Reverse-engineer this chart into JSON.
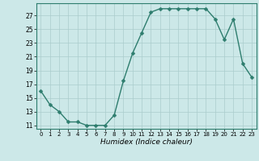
{
  "x": [
    0,
    1,
    2,
    3,
    4,
    5,
    6,
    7,
    8,
    9,
    10,
    11,
    12,
    13,
    14,
    15,
    16,
    17,
    18,
    19,
    20,
    21,
    22,
    23
  ],
  "y": [
    16.0,
    14.0,
    13.0,
    11.5,
    11.5,
    11.0,
    11.0,
    11.0,
    12.5,
    17.5,
    21.5,
    24.5,
    27.5,
    28.0,
    28.0,
    28.0,
    28.0,
    28.0,
    28.0,
    26.5,
    23.5,
    26.5,
    20.0,
    18.0
  ],
  "line_color": "#2e7d6e",
  "marker": "D",
  "marker_size": 2.5,
  "bg_color": "#cce8e8",
  "grid_color": "#aacccc",
  "xlabel": "Humidex (Indice chaleur)",
  "ylim": [
    10.5,
    28.8
  ],
  "yticks": [
    11,
    13,
    15,
    17,
    19,
    21,
    23,
    25,
    27
  ],
  "xticks": [
    0,
    1,
    2,
    3,
    4,
    5,
    6,
    7,
    8,
    9,
    10,
    11,
    12,
    13,
    14,
    15,
    16,
    17,
    18,
    19,
    20,
    21,
    22,
    23
  ]
}
